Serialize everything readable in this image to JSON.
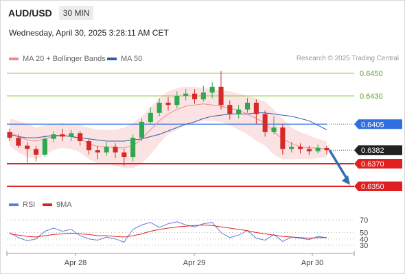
{
  "header": {
    "symbol": "AUD/USD",
    "timeframe": "30 MIN",
    "datetime": "Wednesday, April 30, 2025 3:28:11 AM CET"
  },
  "legend": {
    "items": [
      {
        "label": "MA 20 + Bollinger Bands",
        "color": "#f08a8a"
      },
      {
        "label": "MA 50",
        "color": "#2f5da8"
      }
    ],
    "credit": "Research © 2025 Trading Central"
  },
  "chart_data": [
    {
      "type": "candlestick",
      "title": "",
      "ylim": [
        0.6343,
        0.6457
      ],
      "x_ticks": [
        "Apr 28",
        "Apr 29",
        "Apr 30"
      ],
      "levels": [
        {
          "label": "0.6450",
          "value": 0.645,
          "color": "#8cc63f",
          "style": "target"
        },
        {
          "label": "0.6430",
          "value": 0.643,
          "color": "#8cc63f",
          "style": "target"
        },
        {
          "label": "0.6405",
          "value": 0.6405,
          "color": "#2f6fe0",
          "style": "pivot"
        },
        {
          "label": "0.6382",
          "value": 0.6382,
          "color": "#222222",
          "style": "last"
        },
        {
          "label": "0.6370",
          "value": 0.637,
          "color": "#e02020",
          "style": "support"
        },
        {
          "label": "0.6350",
          "value": 0.635,
          "color": "#e02020",
          "style": "support"
        }
      ],
      "last_price": 0.6382,
      "forecast": {
        "from": 0.6382,
        "to": 0.635,
        "color": "#2f6fb0"
      },
      "series": [
        {
          "name": "MA 20",
          "color": "#f08a8a",
          "values": [
            0.6398,
            0.6394,
            0.6391,
            0.639,
            0.6392,
            0.6394,
            0.6395,
            0.6394,
            0.6392,
            0.6388,
            0.6385,
            0.6385,
            0.6384,
            0.6384,
            0.6386,
            0.6392,
            0.64,
            0.6408,
            0.6414,
            0.6418,
            0.6421,
            0.6422,
            0.6423,
            0.6422,
            0.6421,
            0.6419,
            0.6417,
            0.6414,
            0.641,
            0.6406,
            0.6398,
            0.6392,
            0.6388,
            0.6385,
            0.6384,
            0.6384,
            0.6383
          ]
        },
        {
          "name": "MA 50",
          "color": "#2f5da8",
          "values": [
            0.6396,
            0.6394,
            0.6393,
            0.6393,
            0.6394,
            0.6395,
            0.6395,
            0.6394,
            0.6393,
            0.6392,
            0.6391,
            0.639,
            0.639,
            0.639,
            0.6391,
            0.6392,
            0.6394,
            0.6396,
            0.6399,
            0.6402,
            0.6405,
            0.6407,
            0.641,
            0.6412,
            0.6413,
            0.6414,
            0.6414,
            0.6414,
            0.6415,
            0.6415,
            0.6414,
            0.6413,
            0.6412,
            0.641,
            0.6408,
            0.6404,
            0.64
          ]
        },
        {
          "name": "Bollinger Upper",
          "values": [
            0.641,
            0.6408,
            0.6405,
            0.6402,
            0.6404,
            0.6405,
            0.6406,
            0.6405,
            0.6404,
            0.6402,
            0.64,
            0.64,
            0.64,
            0.6402,
            0.6406,
            0.6412,
            0.642,
            0.6428,
            0.6434,
            0.6437,
            0.6438,
            0.6438,
            0.6437,
            0.6436,
            0.6435,
            0.6434,
            0.6432,
            0.643,
            0.6428,
            0.6425,
            0.6418,
            0.641,
            0.6402,
            0.6398,
            0.6395,
            0.6392,
            0.639
          ]
        },
        {
          "name": "Bollinger Lower",
          "values": [
            0.6386,
            0.638,
            0.6376,
            0.6374,
            0.6378,
            0.6382,
            0.6384,
            0.6383,
            0.638,
            0.6374,
            0.637,
            0.637,
            0.6368,
            0.6366,
            0.6366,
            0.637,
            0.6378,
            0.6388,
            0.6396,
            0.64,
            0.6404,
            0.6406,
            0.6408,
            0.6408,
            0.6407,
            0.6404,
            0.64,
            0.6396,
            0.639,
            0.6386,
            0.6378,
            0.6374,
            0.6374,
            0.6374,
            0.6374,
            0.6375,
            0.6376
          ]
        }
      ],
      "candles": [
        [
          0.6398,
          0.6393,
          0.6401,
          0.639
        ],
        [
          0.6393,
          0.6386,
          0.6396,
          0.6384
        ],
        [
          0.6386,
          0.6383,
          0.6389,
          0.6371
        ],
        [
          0.6383,
          0.6378,
          0.6386,
          0.6372
        ],
        [
          0.6378,
          0.6392,
          0.6395,
          0.6376
        ],
        [
          0.6392,
          0.6396,
          0.6399,
          0.6389
        ],
        [
          0.6396,
          0.6394,
          0.6401,
          0.639
        ],
        [
          0.6394,
          0.6397,
          0.64,
          0.639
        ],
        [
          0.6397,
          0.639,
          0.6399,
          0.6386
        ],
        [
          0.639,
          0.6382,
          0.6392,
          0.6378
        ],
        [
          0.6382,
          0.638,
          0.6386,
          0.6374
        ],
        [
          0.638,
          0.6385,
          0.6389,
          0.6377
        ],
        [
          0.6385,
          0.638,
          0.6388,
          0.6375
        ],
        [
          0.638,
          0.6376,
          0.6383,
          0.6368
        ],
        [
          0.6376,
          0.6393,
          0.6396,
          0.6372
        ],
        [
          0.6393,
          0.6407,
          0.641,
          0.639
        ],
        [
          0.6407,
          0.6415,
          0.642,
          0.6405
        ],
        [
          0.6415,
          0.6424,
          0.6428,
          0.6412
        ],
        [
          0.6424,
          0.6422,
          0.6429,
          0.6417
        ],
        [
          0.6422,
          0.643,
          0.6434,
          0.6419
        ],
        [
          0.643,
          0.6432,
          0.6436,
          0.6426
        ],
        [
          0.6432,
          0.6427,
          0.6436,
          0.6423
        ],
        [
          0.6427,
          0.6433,
          0.6439,
          0.6425
        ],
        [
          0.6433,
          0.6438,
          0.6442,
          0.6428
        ],
        [
          0.6438,
          0.6422,
          0.6452,
          0.6418
        ],
        [
          0.6422,
          0.6414,
          0.6426,
          0.6409
        ],
        [
          0.6414,
          0.6418,
          0.6422,
          0.641
        ],
        [
          0.6418,
          0.6424,
          0.6428,
          0.6415
        ],
        [
          0.6424,
          0.6414,
          0.6427,
          0.6405
        ],
        [
          0.6414,
          0.6398,
          0.6417,
          0.6394
        ],
        [
          0.6398,
          0.6402,
          0.6412,
          0.6396
        ],
        [
          0.6402,
          0.6383,
          0.6405,
          0.6378
        ],
        [
          0.6383,
          0.6385,
          0.6389,
          0.638
        ],
        [
          0.6385,
          0.6383,
          0.6388,
          0.6379
        ],
        [
          0.6383,
          0.6381,
          0.6386,
          0.6378
        ],
        [
          0.6381,
          0.6384,
          0.6387,
          0.6379
        ],
        [
          0.6384,
          0.6382,
          0.6386,
          0.6378
        ]
      ]
    },
    {
      "type": "line",
      "title": "",
      "ylim": [
        25,
        75
      ],
      "y_ticks": [
        "70",
        "50",
        "40",
        "30"
      ],
      "y_tick_values": [
        70,
        50,
        40,
        30
      ],
      "legend": [
        {
          "label": "RSI",
          "color": "#5b7fd6"
        },
        {
          "label": "9MA",
          "color": "#e02020"
        }
      ],
      "series": [
        {
          "name": "RSI",
          "color": "#5b7fd6",
          "values": [
            50,
            42,
            37,
            40,
            52,
            57,
            52,
            55,
            45,
            40,
            38,
            43,
            40,
            35,
            55,
            62,
            66,
            58,
            64,
            67,
            62,
            59,
            64,
            66,
            50,
            42,
            46,
            53,
            41,
            38,
            47,
            36,
            43,
            41,
            39,
            44,
            42
          ]
        },
        {
          "name": "9MA",
          "color": "#e02020",
          "values": [
            48,
            46,
            44,
            43,
            45,
            47,
            48,
            49,
            48,
            47,
            45,
            45,
            44,
            43,
            45,
            48,
            52,
            55,
            57,
            59,
            60,
            61,
            62,
            61,
            59,
            57,
            55,
            53,
            50,
            48,
            46,
            44,
            43,
            42,
            41,
            42,
            42
          ]
        }
      ]
    }
  ]
}
